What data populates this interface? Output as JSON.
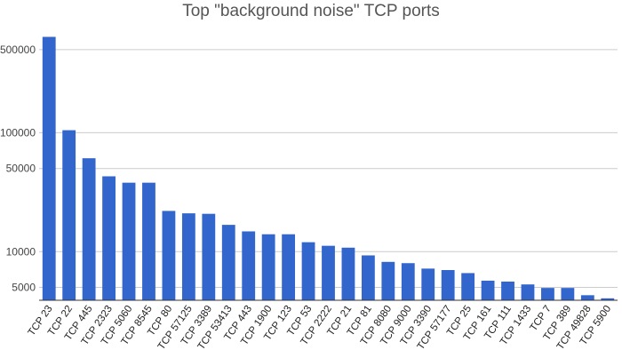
{
  "chart_data": {
    "type": "bar",
    "title": "Top \"background noise\" TCP ports",
    "xlabel": "",
    "ylabel": "",
    "yscale": "log",
    "ylim": [
      3900,
      780000
    ],
    "yticks": [
      5000,
      10000,
      50000,
      100000,
      500000
    ],
    "ytick_labels": [
      "5000",
      "10000",
      "50000",
      "100000",
      "500000"
    ],
    "grid": true,
    "legend": "none",
    "color": "#3366cc",
    "categories": [
      "TCP 23",
      "TCP 22",
      "TCP 445",
      "TCP 2323",
      "TCP 5060",
      "TCP 8545",
      "TCP 80",
      "TCP 57125",
      "TCP 3389",
      "TCP 53413",
      "TCP 443",
      "TCP 1900",
      "TCP 123",
      "TCP 53",
      "TCP 2222",
      "TCP 21",
      "TCP 81",
      "TCP 8080",
      "TCP 9000",
      "TCP 3390",
      "TCP 57177",
      "TCP 25",
      "TCP 161",
      "TCP 111",
      "TCP 1433",
      "TCP 7",
      "TCP 389",
      "TCP 49828",
      "TCP 5900"
    ],
    "values": [
      640000,
      105000,
      61000,
      43000,
      38000,
      38000,
      22000,
      21000,
      20800,
      16800,
      14800,
      14000,
      14000,
      12000,
      11200,
      10800,
      9300,
      8200,
      8000,
      7200,
      7000,
      6600,
      5700,
      5600,
      5300,
      4950,
      4950,
      4300,
      4050
    ]
  }
}
